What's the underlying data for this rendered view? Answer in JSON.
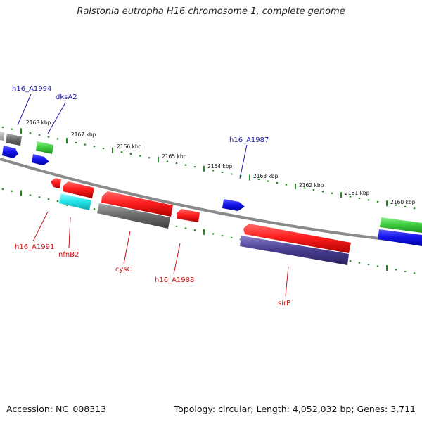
{
  "title": "Ralstonia eutropha H16 chromosome 1, complete genome",
  "footer": {
    "accession": "Accession: NC_008313",
    "summary": "Topology: circular; Length: 4,052,032 bp; Genes: 3,711"
  },
  "colors": {
    "forward_label": "#1a1aa8",
    "reverse_label": "#cc1111",
    "tick": "#228822",
    "backbone": "#8a8a8a",
    "red": "#ff1f1f",
    "blue": "#1515ee",
    "green": "#3fcf3f",
    "gray": "#6d6d6d",
    "cyan": "#25e8ee",
    "purple": "#4a3f92"
  },
  "kbp_labels": [
    "2168 kbp",
    "2167 kbp",
    "2166 kbp",
    "2165 kbp",
    "2164 kbp",
    "2163 kbp",
    "2162 kbp",
    "2161 kbp",
    "2160 kbp"
  ],
  "forward_gene_labels": [
    "h16_A1994",
    "dksA2",
    "h16_A1987"
  ],
  "reverse_gene_labels": [
    "h16_A1991",
    "nfnB2",
    "cysC",
    "h16_A1988",
    "sirP"
  ]
}
